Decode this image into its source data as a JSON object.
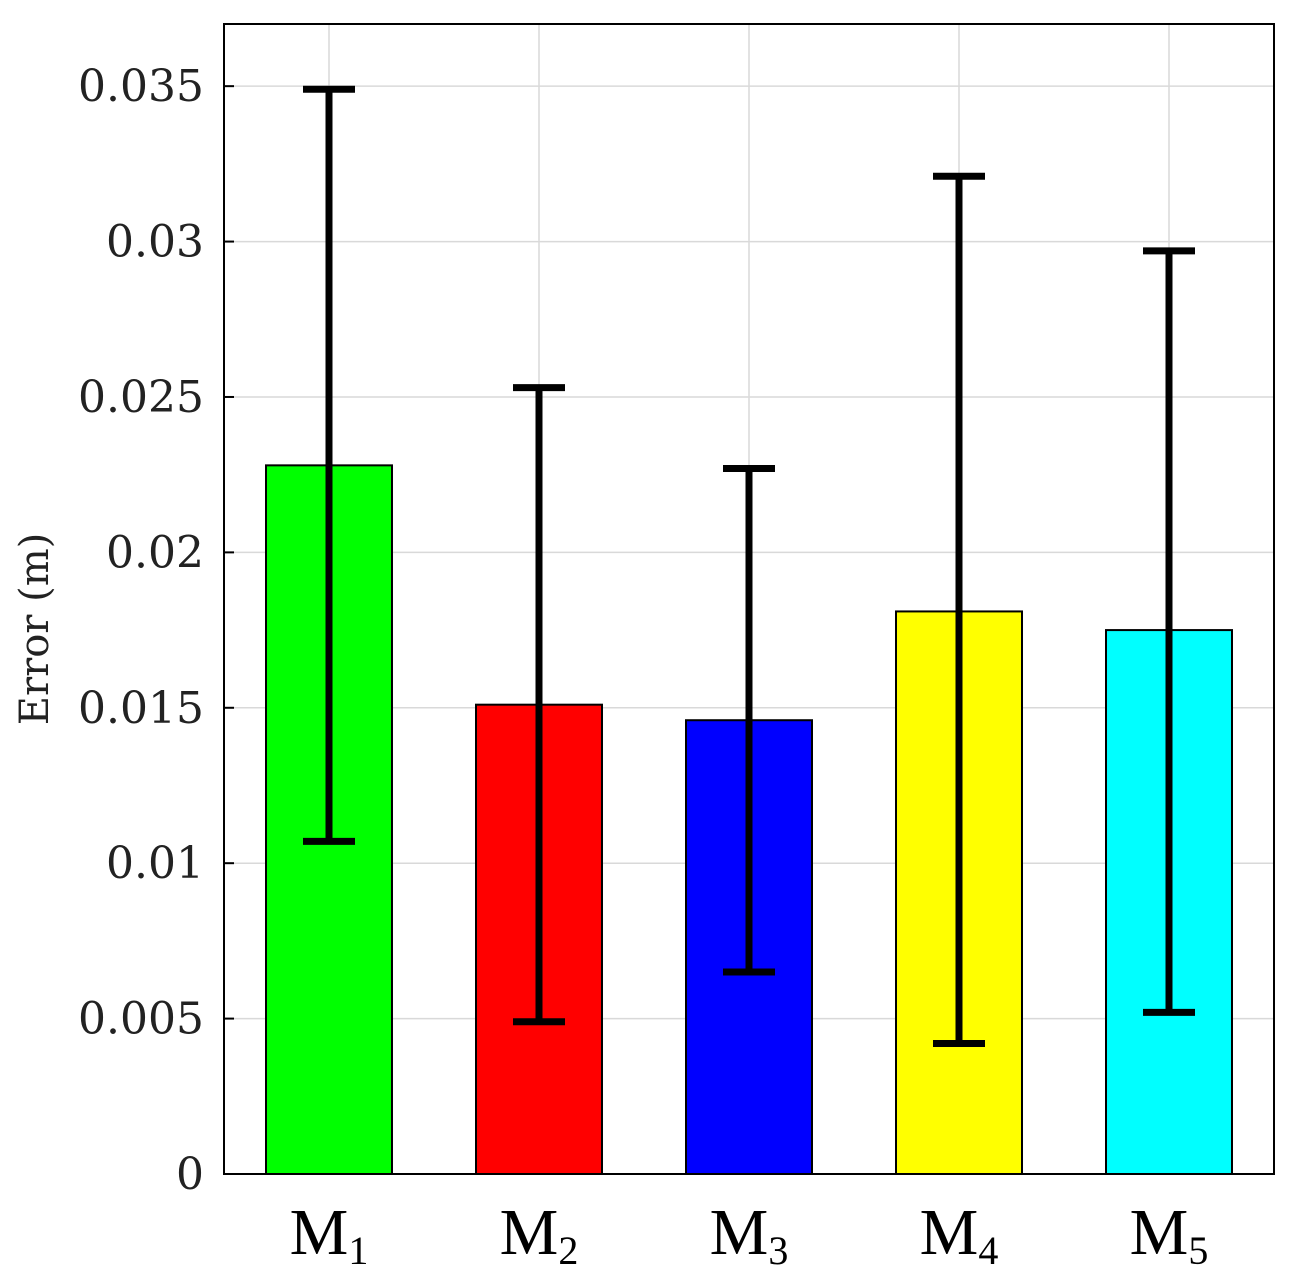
{
  "chart_data": {
    "type": "bar",
    "categories": [
      {
        "base": "M",
        "sub": "1"
      },
      {
        "base": "M",
        "sub": "2"
      },
      {
        "base": "M",
        "sub": "3"
      },
      {
        "base": "M",
        "sub": "4"
      },
      {
        "base": "M",
        "sub": "5"
      }
    ],
    "values": [
      0.0228,
      0.0151,
      0.0146,
      0.0181,
      0.0175
    ],
    "error_low": [
      0.0107,
      0.0049,
      0.0065,
      0.0042,
      0.0052
    ],
    "error_high": [
      0.0349,
      0.0253,
      0.0227,
      0.0321,
      0.0297
    ],
    "colors": [
      "#00ff00",
      "#ff0000",
      "#0000ff",
      "#ffff00",
      "#00ffff"
    ],
    "ylabel": "Error (m)",
    "xlabel": "",
    "title": "",
    "ylim": [
      0,
      0.037
    ],
    "yticks": [
      0,
      0.005,
      0.01,
      0.015,
      0.02,
      0.025,
      0.03,
      0.035
    ],
    "ytick_labels": [
      "0",
      "0.005",
      "0.01",
      "0.015",
      "0.02",
      "0.025",
      "0.03",
      "0.035"
    ],
    "grid": true
  }
}
